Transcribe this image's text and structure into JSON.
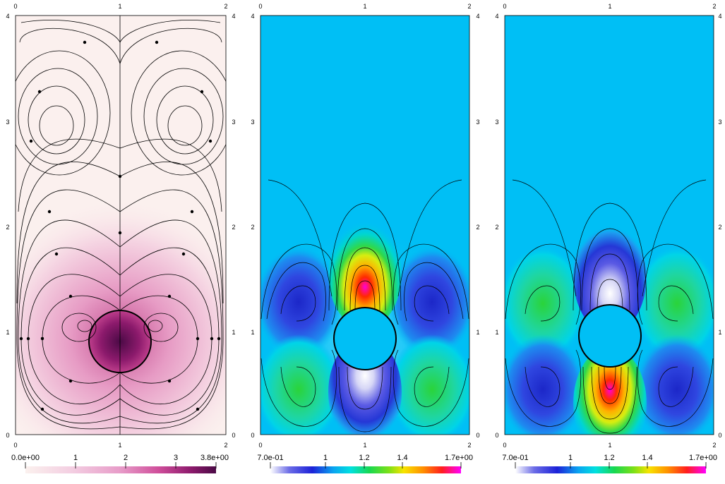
{
  "panels": [
    {
      "name": "velocity-magnitude",
      "x_ticks": [
        "0",
        "1",
        "2"
      ],
      "y_ticks": [
        "0",
        "1",
        "2",
        "3",
        "4"
      ],
      "colorbar": {
        "labels": [
          "0.0e+00",
          "1",
          "2",
          "3",
          "3.8e+00"
        ],
        "colors": [
          "#fbf1ee",
          "#f3cde1",
          "#e79bc8",
          "#cf4d9a",
          "#8c1a6c",
          "#4b0a46"
        ]
      }
    },
    {
      "name": "field-2",
      "x_ticks": [
        "0",
        "1",
        "2"
      ],
      "y_ticks": [
        "0",
        "1",
        "2",
        "3",
        "4"
      ],
      "colorbar": {
        "labels": [
          "7.0e-01",
          "1",
          "1.2",
          "1.4",
          "1.7e+00"
        ],
        "colors": [
          "#ffffff",
          "#2b2bd9",
          "#00c8f0",
          "#18d850",
          "#f7e400",
          "#ff2a00",
          "#ff00ff"
        ]
      }
    },
    {
      "name": "field-3",
      "x_ticks": [
        "0",
        "1",
        "2"
      ],
      "y_ticks": [
        "0",
        "1",
        "2",
        "3",
        "4"
      ],
      "colorbar": {
        "labels": [
          "7.0e-01",
          "1",
          "1.2",
          "1.4",
          "1.7e+00"
        ],
        "colors": [
          "#ffffff",
          "#2b2bd9",
          "#00c8f0",
          "#18d850",
          "#f7e400",
          "#ff2a00",
          "#ff00ff"
        ]
      }
    }
  ]
}
